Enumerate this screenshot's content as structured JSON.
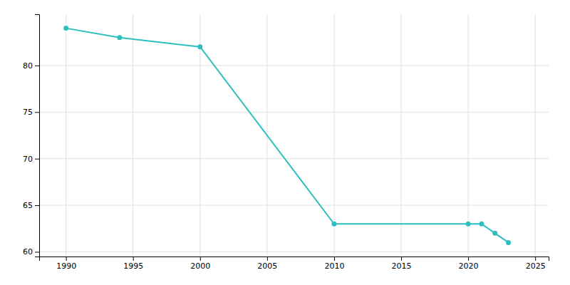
{
  "chart_data": {
    "type": "line",
    "x": [
      1990,
      1994,
      2000,
      2010,
      2020,
      2021,
      2022,
      2023
    ],
    "values": [
      84,
      83,
      82,
      63,
      63,
      63,
      62,
      61
    ],
    "color": "#2dbfbf",
    "marker": "circle",
    "xlim": [
      1988,
      2026
    ],
    "ylim": [
      59.5,
      85.5
    ],
    "xticks": [
      1990,
      1995,
      2000,
      2005,
      2010,
      2015,
      2020,
      2025
    ],
    "yticks": [
      60,
      65,
      70,
      75,
      80
    ],
    "grid": true
  }
}
